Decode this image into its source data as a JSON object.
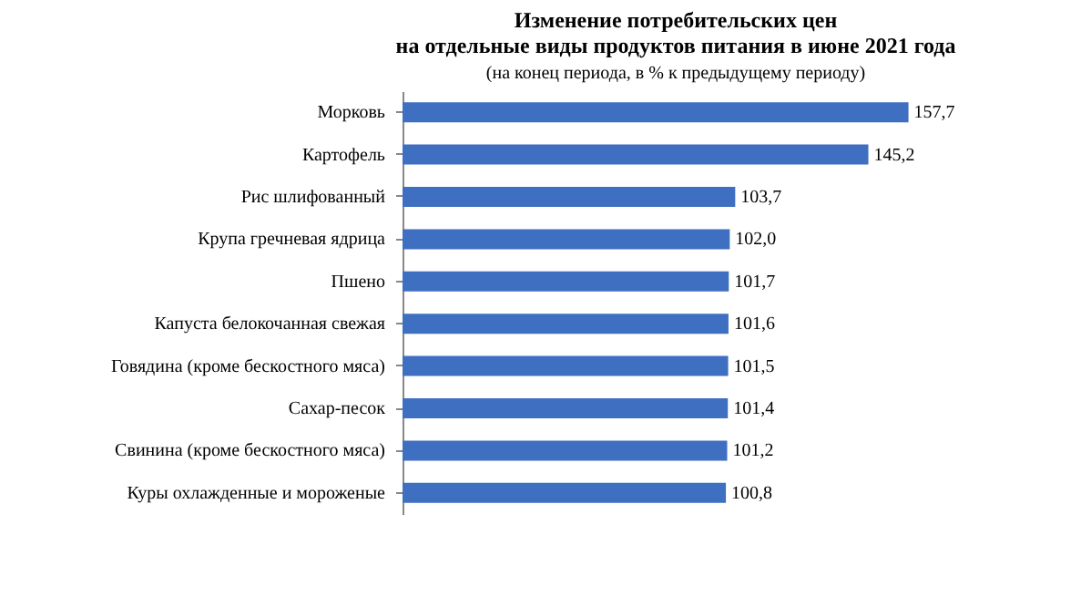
{
  "chart_data": {
    "type": "bar",
    "orientation": "horizontal",
    "title": [
      "Изменение потребительских цен",
      "на отдельные виды продуктов питания в июне 2021 года"
    ],
    "subtitle": "(на конец периода, в % к предыдущему периоду)",
    "categories": [
      "Морковь",
      "Картофель",
      "Рис шлифованный",
      "Крупа гречневая ядрица",
      "Пшено",
      "Капуста белокочанная свежая",
      "Говядина (кроме бескостного мяса)",
      "Сахар-песок",
      "Свинина (кроме бескостного мяса)",
      "Куры охлажденные и мороженые"
    ],
    "values": [
      157.7,
      145.2,
      103.7,
      102.0,
      101.7,
      101.6,
      101.5,
      101.4,
      101.2,
      100.8
    ],
    "value_labels": [
      "157,7",
      "145,2",
      "103,7",
      "102,0",
      "101,7",
      "101,6",
      "101,5",
      "101,4",
      "101,2",
      "100,8"
    ],
    "color": "#3f6fc0",
    "grid": false
  }
}
